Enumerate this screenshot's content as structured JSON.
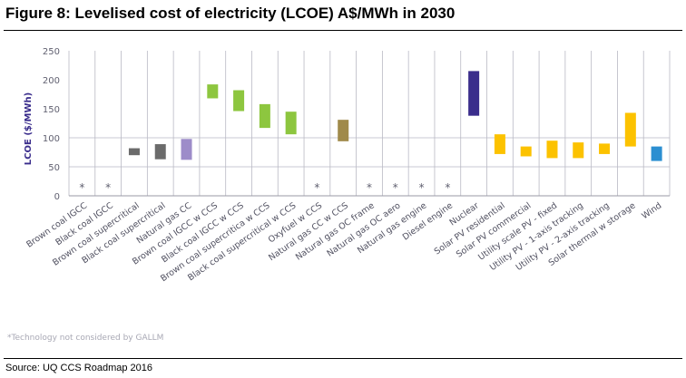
{
  "figure": {
    "title": "Figure 8: Levelised cost of electricity (LCOE) A$/MWh in 2030",
    "footnote": "*Technology not considered by GALLM",
    "source": "Source: UQ CCS Roadmap 2016"
  },
  "chart_data": {
    "type": "bar",
    "subtype": "floating-range",
    "title": "Figure 8: Levelised cost of electricity (LCOE) A$/MWh in 2030",
    "xlabel": "",
    "ylabel": "LCOE ($/MWh)",
    "ylim": [
      0,
      250
    ],
    "yticks": [
      0,
      50,
      100,
      150,
      200,
      250
    ],
    "grid": "vertical category lines and horizontal lines at 50 and 100",
    "legend": "none",
    "not_considered_marker": "*",
    "categories": [
      "Brown coal IGCC",
      "Black coal IGCC",
      "Brown coal supercritical",
      "Black coal supercritical",
      "Natural gas CC",
      "Brown coal IGCC w CCS",
      "Black coal IGCC w CCS",
      "Brown coal supercritica w CCS",
      "Black coal supercritical w CCS",
      "Oxyfuel w CCS",
      "Natural gas CC w CCS",
      "Natural gas OC frame",
      "Natural gas OC aero",
      "Natural gas engine",
      "Diesel engine",
      "Nuclear",
      "Solar PV residential",
      "Solar PV commercial",
      "Utility scale PV - fixed",
      "Utility PV - 1-axis tracking",
      "Utility PV - 2-axis tracking",
      "Solar thermal w storage",
      "Wind"
    ],
    "low": [
      null,
      null,
      70,
      63,
      62,
      168,
      146,
      117,
      106,
      null,
      94,
      null,
      null,
      null,
      null,
      138,
      72,
      68,
      65,
      65,
      72,
      85,
      60
    ],
    "high": [
      null,
      null,
      82,
      89,
      98,
      192,
      182,
      158,
      145,
      null,
      131,
      null,
      null,
      null,
      null,
      215,
      106,
      85,
      95,
      92,
      90,
      143,
      85
    ],
    "not_considered": [
      true,
      true,
      false,
      false,
      false,
      false,
      false,
      false,
      false,
      true,
      false,
      true,
      true,
      true,
      true,
      false,
      false,
      false,
      false,
      false,
      false,
      false,
      false
    ],
    "colors": [
      "",
      "",
      "#6b6b6b",
      "#6b6b6b",
      "#9d8cc9",
      "#8dc63f",
      "#8dc63f",
      "#8dc63f",
      "#8dc63f",
      "",
      "#a08a4a",
      "",
      "",
      "",
      "",
      "#3a2d8c",
      "#fcc200",
      "#fcc200",
      "#fcc200",
      "#fcc200",
      "#fcc200",
      "#fcc200",
      "#2b8fd1"
    ]
  }
}
